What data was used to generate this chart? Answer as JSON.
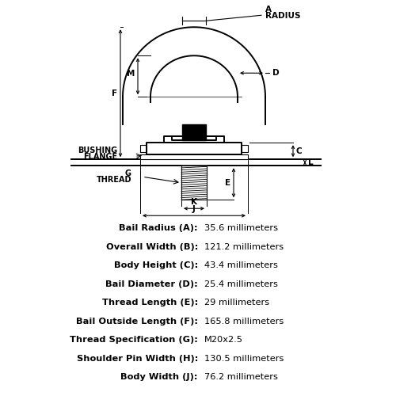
{
  "bg_color": "#ffffff",
  "specs": [
    [
      "Bail Radius (A):",
      "35.6 millimeters"
    ],
    [
      "Overall Width (B):",
      "121.2 millimeters"
    ],
    [
      "Body Height (C):",
      "43.4 millimeters"
    ],
    [
      "Bail Diameter (D):",
      "25.4 millimeters"
    ],
    [
      "Thread Length (E):",
      "29 millimeters"
    ],
    [
      "Bail Outside Length (F):",
      "165.8 millimeters"
    ],
    [
      "Thread Specification (G):",
      "M20x2.5"
    ],
    [
      "Shoulder Pin Width (H):",
      "130.5 millimeters"
    ],
    [
      "Body Width (J):",
      "76.2 millimeters"
    ]
  ],
  "lw_main": 1.4,
  "lw_dim": 0.8,
  "lw_ext": 0.7
}
